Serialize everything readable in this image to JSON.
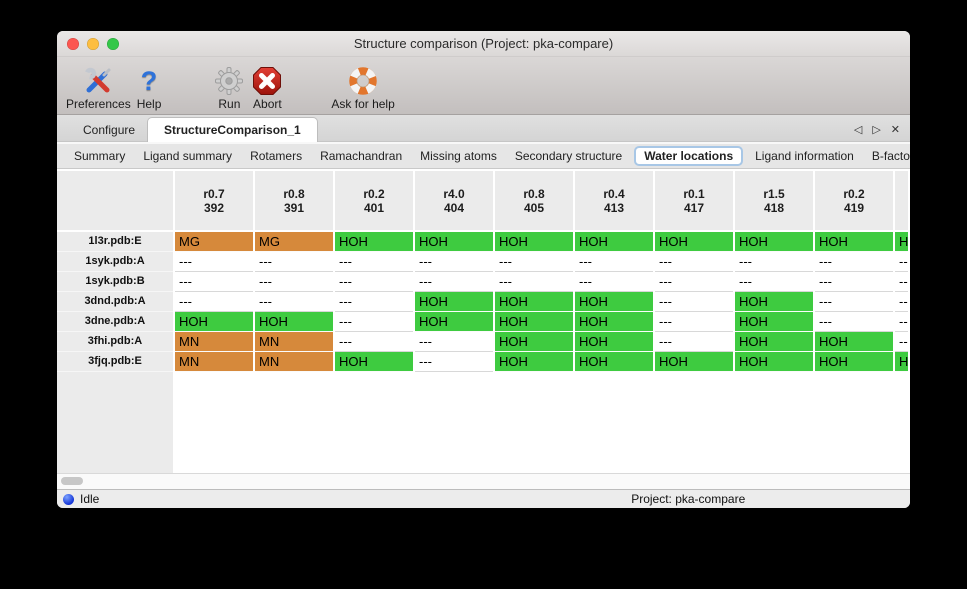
{
  "window_title": "Structure comparison (Project: pka-compare)",
  "toolbar": {
    "items": [
      {
        "label": "Preferences",
        "icon": "tools-icon"
      },
      {
        "label": "Help",
        "icon": "question-mark-icon"
      },
      {
        "label": "Run",
        "icon": "gear-icon"
      },
      {
        "label": "Abort",
        "icon": "abort-stop-icon"
      },
      {
        "label": "Ask for help",
        "icon": "lifebuoy-icon"
      }
    ]
  },
  "tabs": {
    "items": [
      {
        "label": "Configure",
        "selected": false
      },
      {
        "label": "StructureComparison_1",
        "selected": true
      }
    ]
  },
  "tab_nav": {
    "prev": "◁",
    "next": "▷",
    "close": "✕"
  },
  "subtabs": {
    "items": [
      "Summary",
      "Ligand summary",
      "Rotamers",
      "Ramachandran",
      "Missing atoms",
      "Secondary structure",
      "Water locations",
      "Ligand information",
      "B-factors"
    ],
    "selected": "Water locations",
    "nav_prev": "◁",
    "nav_next": "▷"
  },
  "table": {
    "columns": [
      [
        "r0.7",
        "392"
      ],
      [
        "r0.8",
        "391"
      ],
      [
        "r0.2",
        "401"
      ],
      [
        "r4.0",
        "404"
      ],
      [
        "r0.8",
        "405"
      ],
      [
        "r0.4",
        "413"
      ],
      [
        "r0.1",
        "417"
      ],
      [
        "r1.5",
        "418"
      ],
      [
        "r0.2",
        "419"
      ]
    ],
    "rows": [
      {
        "label": "1l3r.pdb:E",
        "cells": [
          "MG",
          "MG",
          "HOH",
          "HOH",
          "HOH",
          "HOH",
          "HOH",
          "HOH",
          "HOH"
        ],
        "clipped": "HOH"
      },
      {
        "label": "1syk.pdb:A",
        "cells": [
          "---",
          "---",
          "---",
          "---",
          "---",
          "---",
          "---",
          "---",
          "---"
        ],
        "clipped": "---"
      },
      {
        "label": "1syk.pdb:B",
        "cells": [
          "---",
          "---",
          "---",
          "---",
          "---",
          "---",
          "---",
          "---",
          "---"
        ],
        "clipped": "---"
      },
      {
        "label": "3dnd.pdb:A",
        "cells": [
          "---",
          "---",
          "---",
          "HOH",
          "HOH",
          "HOH",
          "---",
          "HOH",
          "---"
        ],
        "clipped": "---"
      },
      {
        "label": "3dne.pdb:A",
        "cells": [
          "HOH",
          "HOH",
          "---",
          "HOH",
          "HOH",
          "HOH",
          "---",
          "HOH",
          "---"
        ],
        "clipped": "---"
      },
      {
        "label": "3fhi.pdb:A",
        "cells": [
          "MN",
          "MN",
          "---",
          "---",
          "HOH",
          "HOH",
          "---",
          "HOH",
          "HOH"
        ],
        "clipped": "---"
      },
      {
        "label": "3fjq.pdb:E",
        "cells": [
          "MN",
          "MN",
          "HOH",
          "---",
          "HOH",
          "HOH",
          "HOH",
          "HOH",
          "HOH"
        ],
        "clipped": "HOH"
      }
    ],
    "cell_colors": {
      "HOH": "#3ecb40",
      "MG": "#d6893b",
      "MN": "#d6893b",
      "---": "#ffffff"
    }
  },
  "statusbar": {
    "status": "Idle",
    "project": "Project: pka-compare"
  }
}
